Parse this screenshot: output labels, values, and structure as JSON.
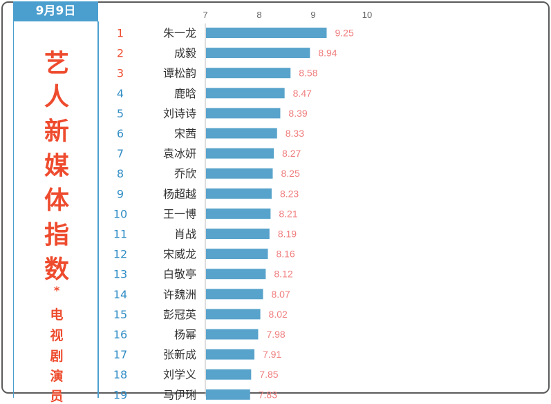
{
  "header": {
    "date": "9月9日"
  },
  "sidebar": {
    "title_chars": [
      "艺",
      "人",
      "新",
      "媒",
      "体",
      "指",
      "数"
    ],
    "star": "*",
    "subtitle_chars": [
      "电",
      "视",
      "剧",
      "演",
      "员"
    ]
  },
  "chart_data": {
    "type": "bar",
    "orientation": "horizontal",
    "xlim": [
      7,
      10
    ],
    "ticks": [
      "7",
      "8",
      "9",
      "10"
    ],
    "grid": false,
    "colors": {
      "bar": "#58a3cb",
      "rank_top": "#ee4b2e",
      "rank": "#2f8cc4",
      "value": "#f07e7e",
      "name": "#333333"
    },
    "ranks": [
      "1",
      "2",
      "3",
      "4",
      "5",
      "6",
      "7",
      "8",
      "9",
      "10",
      "11",
      "12",
      "13",
      "14",
      "15",
      "16",
      "17",
      "18",
      "19"
    ],
    "categories": [
      "朱一龙",
      "成毅",
      "谭松韵",
      "鹿晗",
      "刘诗诗",
      "宋茜",
      "袁冰妍",
      "乔欣",
      "杨超越",
      "王一博",
      "肖战",
      "宋威龙",
      "白敬亭",
      "许魏洲",
      "彭冠英",
      "杨幂",
      "张新成",
      "刘学义",
      "马伊琍"
    ],
    "values": [
      9.25,
      8.94,
      8.58,
      8.47,
      8.39,
      8.33,
      8.27,
      8.25,
      8.23,
      8.21,
      8.19,
      8.16,
      8.12,
      8.07,
      8.02,
      7.98,
      7.91,
      7.85,
      7.83
    ],
    "value_labels": [
      "9.25",
      "8.94",
      "8.58",
      "8.47",
      "8.39",
      "8.33",
      "8.27",
      "8.25",
      "8.23",
      "8.21",
      "8.19",
      "8.16",
      "8.12",
      "8.07",
      "8.02",
      "7.98",
      "7.91",
      "7.85",
      "7.83"
    ]
  }
}
